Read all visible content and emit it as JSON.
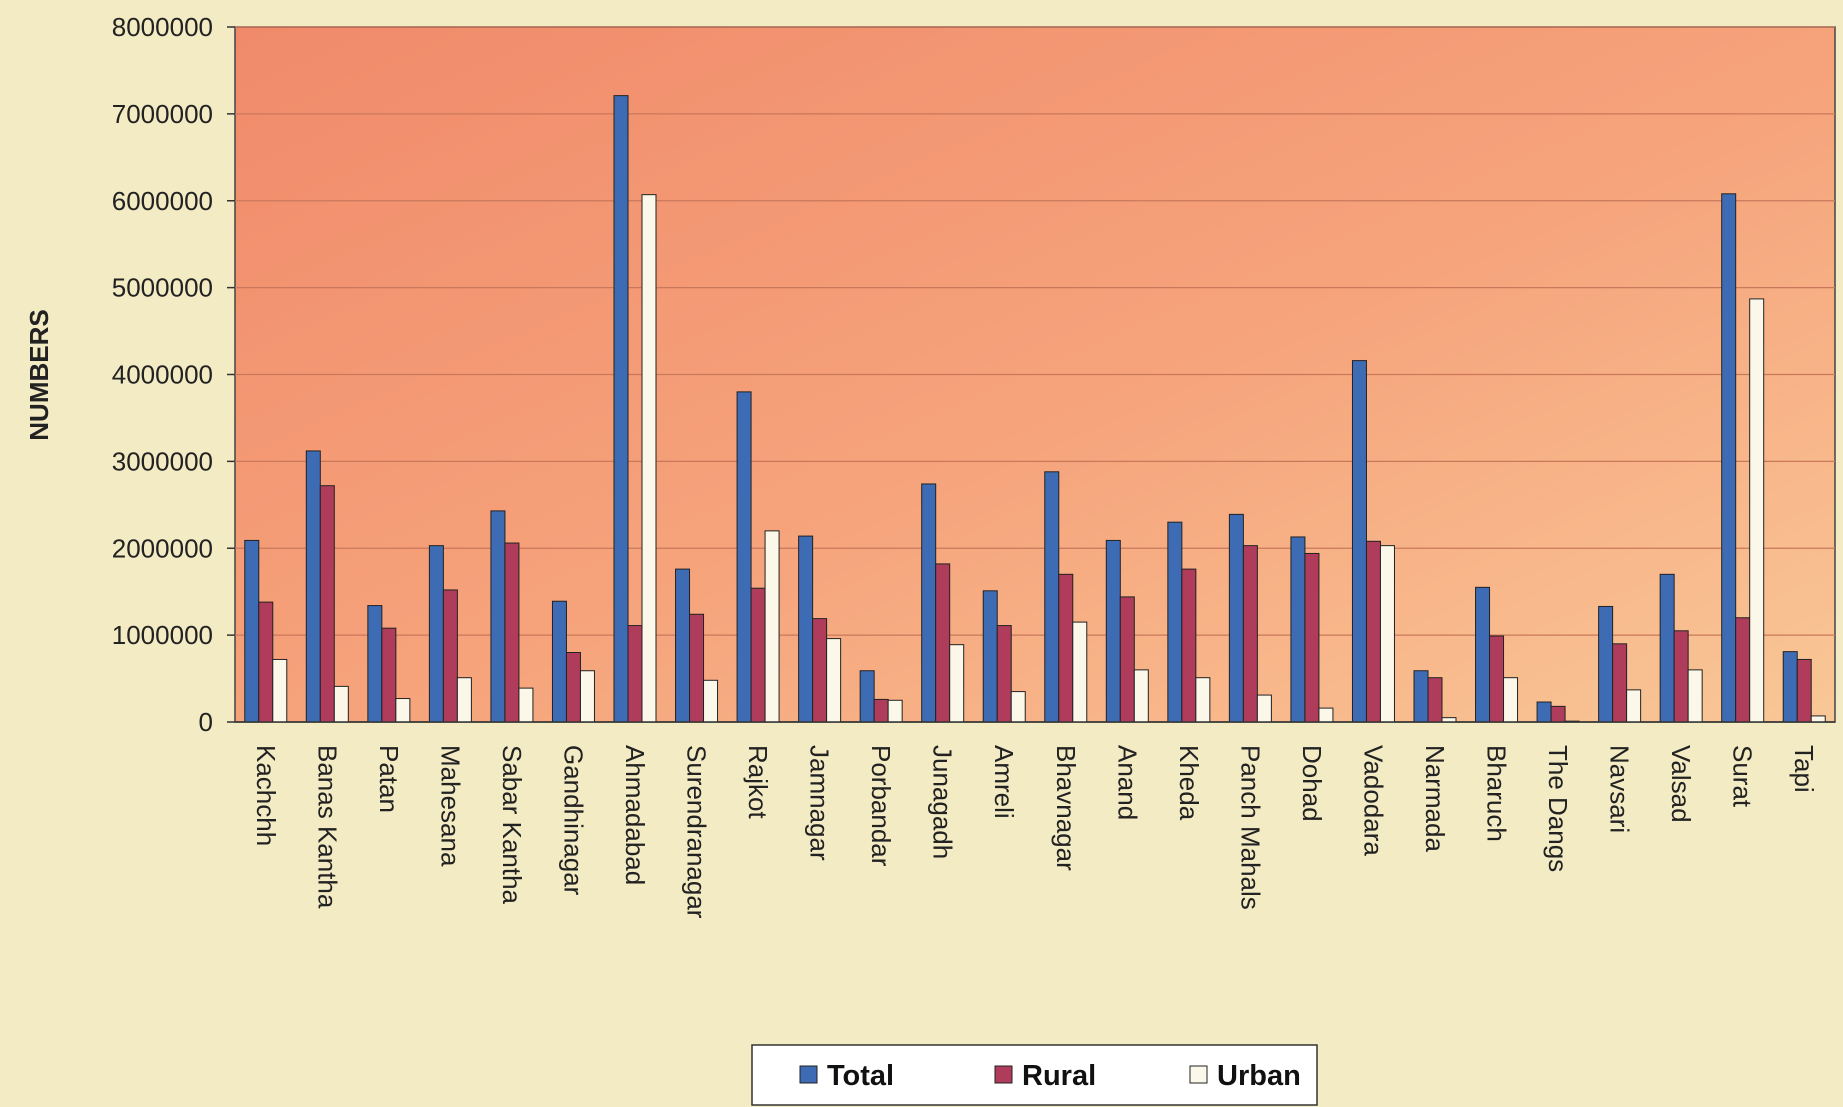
{
  "chart_data": {
    "type": "bar",
    "ylabel": "NUMBERS",
    "xlabel": "",
    "title": "",
    "ylim": [
      0,
      8000000
    ],
    "yticks": [
      "0",
      "1000000",
      "2000000",
      "3000000",
      "4000000",
      "5000000",
      "6000000",
      "7000000",
      "8000000"
    ],
    "grid": true,
    "legend_position": "bottom",
    "categories": [
      "Kachchh",
      "Banas Kantha",
      "Patan",
      "Mahesana",
      "Sabar Kantha",
      "Gandhinagar",
      "Ahmadabad",
      "Surendranagar",
      "Rajkot",
      "Jamnagar",
      "Porbandar",
      "Junagadh",
      "Amreli",
      "Bhavnagar",
      "Anand",
      "Kheda",
      "Panch Mahals",
      "Dohad",
      "Vadodara",
      "Narmada",
      "Bharuch",
      "The Dangs",
      "Navsari",
      "Valsad",
      "Surat",
      "Tapi"
    ],
    "series": [
      {
        "name": "Total",
        "color": "#3d6cb5",
        "values": [
          2090000,
          3120000,
          1340000,
          2030000,
          2430000,
          1390000,
          7210000,
          1760000,
          3800000,
          2140000,
          590000,
          2740000,
          1510000,
          2880000,
          2090000,
          2300000,
          2390000,
          2130000,
          4160000,
          590000,
          1550000,
          230000,
          1330000,
          1700000,
          6080000,
          810000
        ]
      },
      {
        "name": "Rural",
        "color": "#b03c5c",
        "values": [
          1380000,
          2720000,
          1080000,
          1520000,
          2060000,
          800000,
          1110000,
          1240000,
          1540000,
          1190000,
          260000,
          1820000,
          1110000,
          1700000,
          1440000,
          1760000,
          2030000,
          1940000,
          2080000,
          510000,
          990000,
          180000,
          900000,
          1050000,
          1200000,
          720000
        ]
      },
      {
        "name": "Urban",
        "color": "#fbf8ea",
        "values": [
          720000,
          410000,
          270000,
          510000,
          390000,
          590000,
          6070000,
          480000,
          2200000,
          960000,
          250000,
          890000,
          350000,
          1150000,
          600000,
          510000,
          310000,
          160000,
          2030000,
          50000,
          510000,
          10000,
          370000,
          600000,
          4870000,
          70000
        ]
      }
    ]
  }
}
